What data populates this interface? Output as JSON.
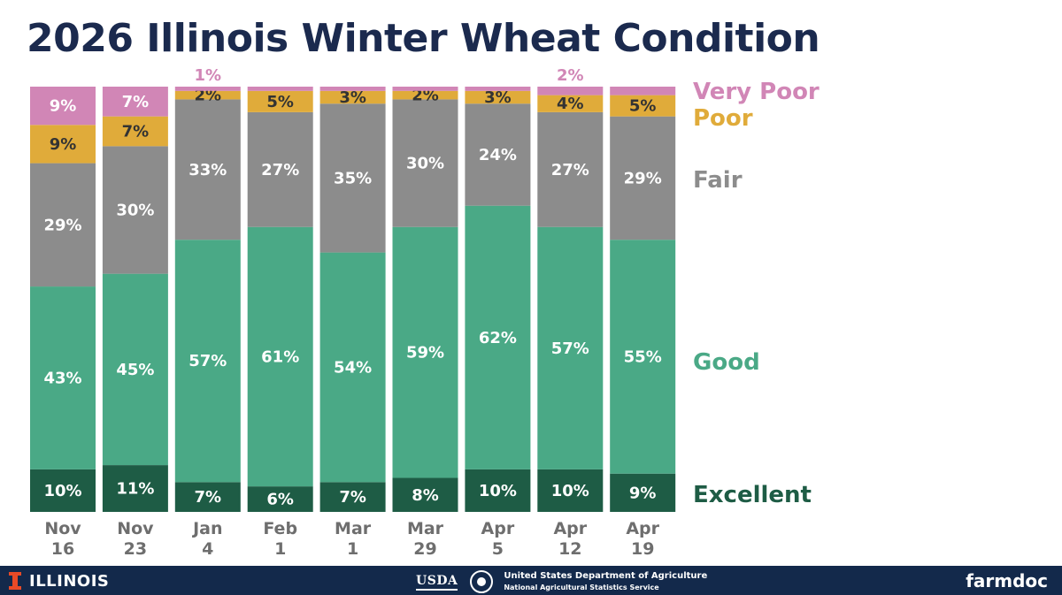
{
  "title": "2026 Illinois Winter Wheat Condition",
  "chart_data": {
    "type": "bar",
    "stacked": true,
    "percent_scale": [
      0,
      100
    ],
    "categories": [
      [
        "Nov",
        "16"
      ],
      [
        "Nov",
        "23"
      ],
      [
        "Jan",
        "4"
      ],
      [
        "Feb",
        "1"
      ],
      [
        "Mar",
        "1"
      ],
      [
        "Mar",
        "29"
      ],
      [
        "Apr",
        "5"
      ],
      [
        "Apr",
        "12"
      ],
      [
        "Apr",
        "19"
      ]
    ],
    "series": [
      {
        "name": "Excellent",
        "color": "#1e5c45",
        "label_color": "#ffffff",
        "values": [
          10,
          11,
          7,
          6,
          7,
          8,
          10,
          10,
          9
        ]
      },
      {
        "name": "Good",
        "color": "#4aa986",
        "label_color": "#ffffff",
        "values": [
          43,
          45,
          57,
          61,
          54,
          59,
          62,
          57,
          55
        ]
      },
      {
        "name": "Fair",
        "color": "#8c8c8c",
        "label_color": "#ffffff",
        "values": [
          29,
          30,
          33,
          27,
          35,
          30,
          24,
          27,
          29
        ]
      },
      {
        "name": "Poor",
        "color": "#e0ab3a",
        "label_color": "#333333",
        "values": [
          9,
          7,
          2,
          5,
          3,
          2,
          3,
          4,
          5
        ]
      },
      {
        "name": "Very Poor",
        "color": "#d186b6",
        "label_color": "#ffffff",
        "values": [
          9,
          7,
          1,
          1,
          1,
          1,
          1,
          2,
          2
        ]
      }
    ],
    "segment_labels": [
      [
        "10%",
        "43%",
        "29%",
        "9%",
        "9%"
      ],
      [
        "11%",
        "45%",
        "30%",
        "7%",
        "7%"
      ],
      [
        "7%",
        "57%",
        "33%",
        "2%",
        "1%"
      ],
      [
        "6%",
        "61%",
        "27%",
        "5%",
        ""
      ],
      [
        "7%",
        "54%",
        "35%",
        "3%",
        ""
      ],
      [
        "8%",
        "59%",
        "30%",
        "2%",
        ""
      ],
      [
        "10%",
        "62%",
        "24%",
        "3%",
        ""
      ],
      [
        "10%",
        "57%",
        "27%",
        "4%",
        "2%"
      ],
      [
        "9%",
        "55%",
        "29%",
        "5%",
        ""
      ]
    ],
    "label_above_bar": [
      false,
      false,
      true,
      false,
      false,
      false,
      false,
      true,
      false
    ],
    "above_bar_color": "#d186b6",
    "legend_position": "right",
    "legend": [
      {
        "name": "Very Poor",
        "color": "#d186b6"
      },
      {
        "name": "Poor",
        "color": "#e0ab3a"
      },
      {
        "name": "Fair",
        "color": "#8c8c8c"
      },
      {
        "name": "Good",
        "color": "#4aa986"
      },
      {
        "name": "Excellent",
        "color": "#1e5c45"
      }
    ]
  },
  "footer": {
    "illinois": "ILLINOIS",
    "usda_logo": "USDA",
    "usda_line1": "United States Department of Agriculture",
    "usda_line2": "National Agricultural Statistics Service",
    "brand": "farmdoc"
  },
  "colors": {
    "title": "#1b2a4e",
    "footer_bg": "#13294b",
    "illinois_orange": "#e84a27"
  }
}
